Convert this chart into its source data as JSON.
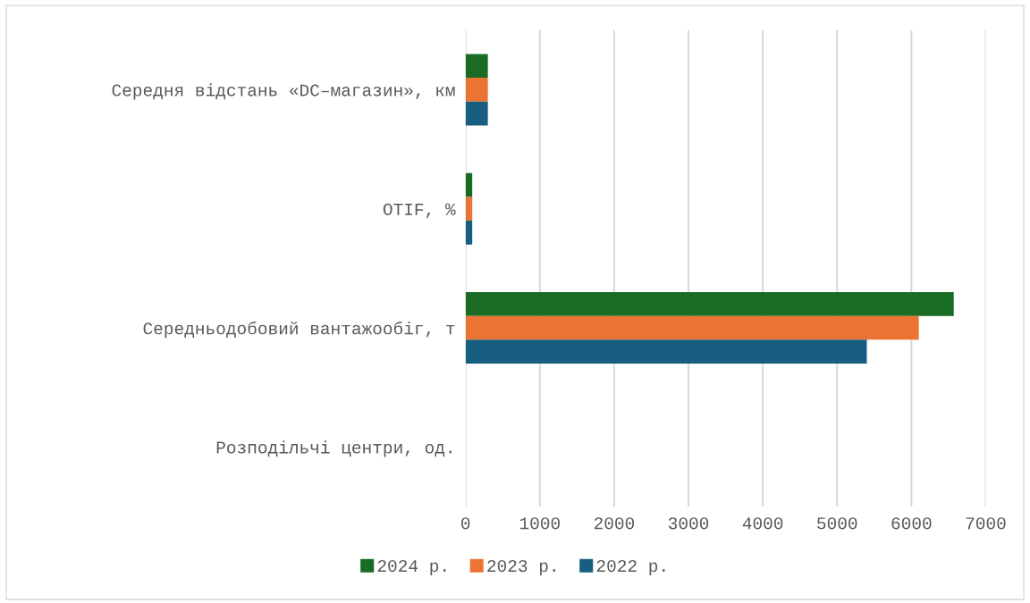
{
  "chart_data": {
    "type": "bar",
    "orientation": "horizontal",
    "categories": [
      "Середня відстань «DC–магазин», км",
      "OTIF, %",
      "Середньодобовий вантажообіг, т",
      "Розподільчі центри, од."
    ],
    "series": [
      {
        "name": "2024 р.",
        "color": "#1a6b23",
        "values": [
          300,
          90,
          6570,
          null
        ]
      },
      {
        "name": "2023 р.",
        "color": "#ea7434",
        "values": [
          300,
          90,
          6100,
          null
        ]
      },
      {
        "name": "2022 р.",
        "color": "#175e80",
        "values": [
          300,
          90,
          5400,
          null
        ]
      }
    ],
    "xlim": [
      0,
      7000
    ],
    "xticks": [
      0,
      1000,
      2000,
      3000,
      4000,
      5000,
      6000,
      7000
    ],
    "grid": "x",
    "legend": "bottom"
  }
}
